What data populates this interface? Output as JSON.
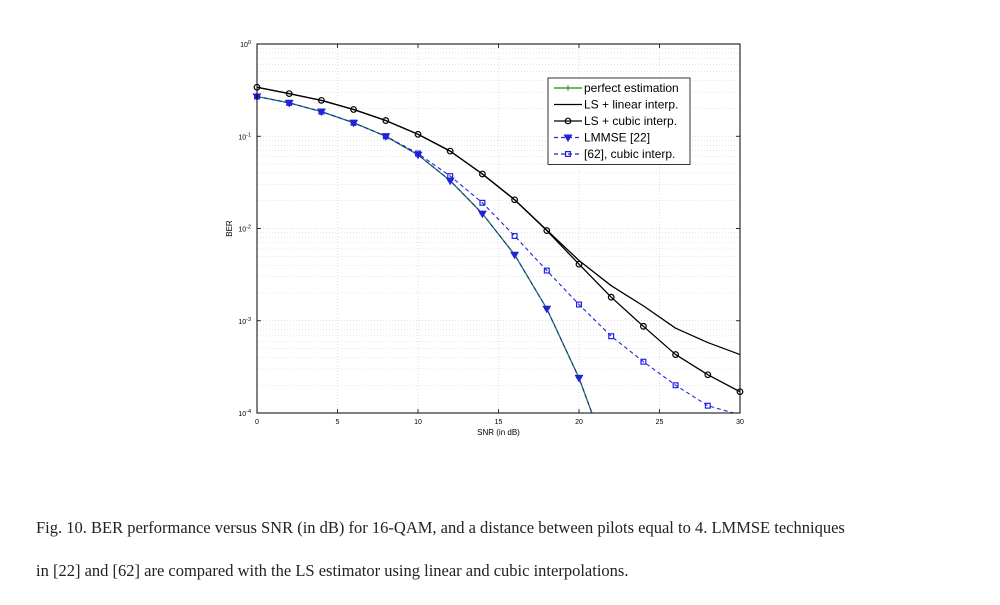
{
  "chart_data": {
    "type": "line",
    "title": "",
    "xlabel": "SNR (in dB)",
    "ylabel": "BER",
    "xlim": [
      0,
      30
    ],
    "ylim": [
      0.0001,
      1
    ],
    "yscale": "log",
    "x_ticks": [
      0,
      5,
      10,
      15,
      20,
      25,
      30
    ],
    "y_ticks": [
      {
        "value": 1,
        "base": "10",
        "exp": "0"
      },
      {
        "value": 0.1,
        "base": "10",
        "exp": "-1"
      },
      {
        "value": 0.01,
        "base": "10",
        "exp": "-2"
      },
      {
        "value": 0.001,
        "base": "10",
        "exp": "-3"
      },
      {
        "value": 0.0001,
        "base": "10",
        "exp": "-4"
      }
    ],
    "grid": true,
    "legend_position": "top-right",
    "series": [
      {
        "name": "perfect estimation",
        "color": "#1a8a1a",
        "dash": "solid",
        "marker": "plus",
        "x": [
          0,
          2,
          4,
          6,
          8,
          10,
          12,
          14,
          16,
          18,
          20,
          20.8
        ],
        "y": [
          0.27,
          0.23,
          0.185,
          0.14,
          0.1,
          0.063,
          0.033,
          0.0145,
          0.0052,
          0.00135,
          0.00024,
          0.0001
        ]
      },
      {
        "name": "LS + linear interp.",
        "color": "#000000",
        "dash": "solid",
        "marker": "none",
        "x": [
          0,
          2,
          4,
          6,
          8,
          10,
          12,
          14,
          16,
          18,
          20,
          22,
          24,
          26,
          28,
          30
        ],
        "y": [
          0.34,
          0.29,
          0.245,
          0.195,
          0.148,
          0.105,
          0.069,
          0.039,
          0.0205,
          0.0096,
          0.0045,
          0.0024,
          0.00145,
          0.00083,
          0.00058,
          0.00043
        ]
      },
      {
        "name": "LS + cubic interp.",
        "color": "#000000",
        "dash": "solid",
        "marker": "circle",
        "x": [
          0,
          2,
          4,
          6,
          8,
          10,
          12,
          14,
          16,
          18,
          20,
          22,
          24,
          26,
          28,
          30
        ],
        "y": [
          0.34,
          0.29,
          0.245,
          0.195,
          0.148,
          0.105,
          0.069,
          0.039,
          0.0205,
          0.0095,
          0.0041,
          0.0018,
          0.00087,
          0.00043,
          0.00026,
          0.00017
        ]
      },
      {
        "name": "LMMSE [22]",
        "color": "#2222dd",
        "dash": "dashed",
        "marker": "triangle-down",
        "x": [
          0,
          2,
          4,
          6,
          8,
          10,
          12,
          14,
          16,
          18,
          20,
          20.8
        ],
        "y": [
          0.27,
          0.23,
          0.185,
          0.14,
          0.1,
          0.063,
          0.033,
          0.0145,
          0.0052,
          0.00135,
          0.00024,
          0.0001
        ]
      },
      {
        "name": "[62], cubic interp.",
        "color": "#2222dd",
        "dash": "dashed",
        "marker": "square",
        "x": [
          0,
          2,
          4,
          6,
          8,
          10,
          12,
          14,
          16,
          18,
          20,
          22,
          24,
          26,
          28,
          29.6
        ],
        "y": [
          0.27,
          0.23,
          0.185,
          0.14,
          0.1,
          0.065,
          0.037,
          0.019,
          0.0083,
          0.0035,
          0.0015,
          0.00068,
          0.00036,
          0.0002,
          0.00012,
          0.0001
        ]
      }
    ]
  },
  "caption": {
    "line1": "Fig. 10.  BER performance versus SNR (in dB) for 16-QAM, and a distance between pilots equal to 4. LMMSE techniques",
    "line2": "in [22] and [62] are compared with the LS estimator using linear and cubic interpolations."
  }
}
